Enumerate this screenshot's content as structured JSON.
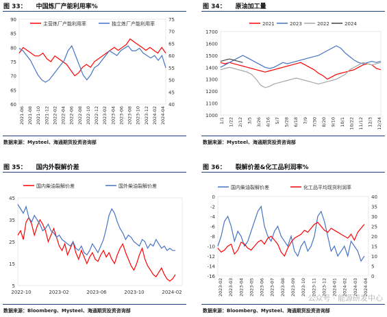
{
  "figures": [
    {
      "number": "图 33：",
      "title": "中国炼厂产能利用率%",
      "source": "数据来源：Mysteel、海通期货投资咨询部"
    },
    {
      "number": "图 34：",
      "title": "原油加工量",
      "source": "数据来源：Mysteel、海通期货投资咨询部"
    },
    {
      "number": "图 35：",
      "title": "国内外裂解价差",
      "source": "数据来源：Bloomberg、Mysteel、海通期货投资咨询部"
    },
    {
      "number": "图 36：",
      "title": "裂解价差&化工品利润率%",
      "source": "数据来源：Bloomberg、Mysteel、海通期货投资咨询部"
    }
  ],
  "watermark": "公众号 · 能源研发中心",
  "colors": {
    "red": "#ff0000",
    "blue": "#4472c4",
    "gray": "#a6a6a6",
    "navy": "#1f3f7a",
    "black": "#404040"
  },
  "chart_data": [
    {
      "type": "line",
      "title": "中国炼厂产能利用率%",
      "x_ticks": [
        "2021-06",
        "2021-08",
        "2021-10",
        "2021-12",
        "2022-02",
        "2022-04",
        "2022-06",
        "2022-08",
        "2022-10",
        "2022-12",
        "2023-02",
        "2023-04",
        "2023-06",
        "2023-08",
        "2023-10",
        "2023-12",
        "2024-02",
        "2024-04"
      ],
      "y_left": {
        "range": [
          60,
          90
        ],
        "ticks": [
          60,
          65,
          70,
          75,
          80,
          85,
          90
        ]
      },
      "y_right": {
        "range": [
          40,
          75
        ],
        "ticks": [
          40,
          45,
          50,
          55,
          60,
          65,
          70,
          75
        ]
      },
      "series": [
        {
          "name": "主营炼厂产能利用率",
          "axis": "left",
          "color": "#ff0000",
          "values": [
            78,
            80,
            79,
            78,
            77,
            77,
            78,
            76,
            75,
            77,
            76,
            75,
            74,
            72,
            70,
            71,
            73,
            74,
            73,
            75,
            76,
            77,
            78,
            79,
            80,
            79,
            80,
            81,
            83,
            82,
            81,
            80,
            79,
            80,
            79,
            78,
            80,
            78
          ]
        },
        {
          "name": "独立炼厂产能利用率",
          "axis": "right",
          "color": "#4472c4",
          "values": [
            63,
            62,
            60,
            58,
            55,
            52,
            50,
            49,
            50,
            52,
            54,
            56,
            58,
            62,
            64,
            60,
            56,
            52,
            50,
            52,
            55,
            56,
            58,
            60,
            62,
            61,
            60,
            62,
            63,
            64,
            62,
            62,
            63,
            61,
            60,
            59,
            60,
            58,
            60,
            55
          ]
        }
      ]
    },
    {
      "type": "line",
      "title": "原油加工量",
      "x_ticks": [
        "1/1",
        "1/22",
        "2/12",
        "3/5",
        "3/26",
        "4/16",
        "5/7",
        "5/28",
        "6/18",
        "7/9",
        "7/30",
        "8/20",
        "9/10",
        "10/1",
        "10/22",
        "11/12",
        "12/3",
        "12/24"
      ],
      "y": {
        "range": [
          1000,
          1700
        ],
        "ticks": [
          1000,
          1100,
          1200,
          1300,
          1400,
          1500,
          1600,
          1700
        ]
      },
      "legend": [
        "2021",
        "2023",
        "2022",
        "2024"
      ],
      "series": [
        {
          "name": "2021",
          "color": "#ff0000",
          "values": [
            1440,
            1430,
            1440,
            1430,
            1420,
            1410,
            1400,
            1390,
            1380,
            1370,
            1360,
            1370,
            1380,
            1390,
            1400,
            1410,
            1420,
            1430,
            1440,
            1420,
            1400,
            1380,
            1350,
            1330,
            1300,
            1320,
            1340,
            1350,
            1360,
            1370,
            1380,
            1400,
            1420,
            1430,
            1420,
            1390,
            1380
          ]
        },
        {
          "name": "2023",
          "color": "#4472c4",
          "values": [
            1400,
            1420,
            1440,
            1460,
            1480,
            1500,
            1480,
            1460,
            1440,
            1420,
            1400,
            1390,
            1400,
            1420,
            1440,
            1430,
            1440,
            1450,
            1460,
            1470,
            1480,
            1490,
            1500,
            1520,
            1540,
            1560,
            1580,
            1560,
            1520,
            1490,
            1460,
            1440,
            1430,
            1440,
            1450,
            1440,
            1450
          ]
        },
        {
          "name": "2022",
          "color": "#a6a6a6",
          "values": [
            1380,
            1390,
            1400,
            1390,
            1380,
            1370,
            1360,
            1340,
            1300,
            1250,
            1230,
            1240,
            1260,
            1270,
            1280,
            1290,
            1300,
            1310,
            1300,
            1290,
            1280,
            1270,
            1260,
            1270,
            1280,
            1290,
            1300,
            1320,
            1340,
            1380,
            1400,
            1420,
            1440,
            1430,
            1420,
            1430,
            1440
          ]
        },
        {
          "name": "2024",
          "color": "#404040",
          "values": [
            1450,
            1460,
            1470,
            1460,
            1450,
            1440
          ]
        }
      ]
    },
    {
      "type": "line",
      "title": "国内外裂解价差",
      "x_ticks": [
        "2022-10",
        "2023-02",
        "2023-06",
        "2023-10",
        "2024-02"
      ],
      "y": {
        "range": [
          5,
          45
        ],
        "ticks": [
          5,
          15,
          25,
          35,
          45
        ]
      },
      "series": [
        {
          "name": "国内柴油裂解价差",
          "color": "#ff0000",
          "values": [
            28,
            30,
            26,
            34,
            36,
            33,
            28,
            32,
            35,
            33,
            30,
            25,
            28,
            31,
            27,
            23,
            21,
            24,
            19,
            22,
            25,
            20,
            17,
            21,
            18,
            15,
            18,
            20,
            17,
            16,
            19,
            21,
            18,
            20,
            17,
            15,
            19,
            22,
            24,
            20,
            17,
            14,
            12,
            15,
            19,
            22,
            17,
            14,
            12,
            10,
            9,
            11,
            13,
            10,
            8,
            7,
            8,
            10
          ]
        },
        {
          "name": "国外柴油裂解价差",
          "color": "#4472c4",
          "values": [
            42,
            40,
            38,
            41,
            36,
            34,
            37,
            35,
            33,
            30,
            31,
            33,
            30,
            29,
            27,
            28,
            26,
            25,
            24,
            23,
            25,
            22,
            21,
            23,
            20,
            19,
            21,
            24,
            22,
            20,
            23,
            26,
            31,
            37,
            40,
            38,
            34,
            31,
            29,
            26,
            28,
            27,
            25,
            24,
            23,
            26,
            25,
            22,
            24,
            23,
            26,
            24,
            22,
            23,
            21,
            22,
            21,
            21
          ]
        }
      ]
    },
    {
      "type": "line",
      "title": "裂解价差&化工品利润率%",
      "x_ticks": [
        "2023-02",
        "2023-03",
        "2023-04",
        "2023-05",
        "2023-06",
        "2023-07",
        "2023-08",
        "2023-09",
        "2023-10",
        "2023-11",
        "2023-12",
        "2024-01",
        "2024-02",
        "2024-03",
        "2024-04"
      ],
      "y_left": {
        "range": [
          -16,
          0
        ],
        "ticks": [
          -16,
          -14,
          -12,
          -10,
          -8,
          -6,
          -4,
          -2,
          0
        ]
      },
      "y_right": {
        "range": [
          0,
          40
        ],
        "ticks": [
          0,
          5,
          10,
          15,
          20,
          25,
          30,
          35,
          40
        ]
      },
      "series": [
        {
          "name": "国内柴油裂解价差",
          "axis": "left",
          "color": "#4472c4",
          "values": [
            -10,
            -8,
            -5,
            -4,
            -6,
            -9,
            -7,
            -8,
            -10,
            -9,
            -7,
            -5,
            -3,
            -2,
            -6,
            -8,
            -9,
            -7,
            -6,
            -8,
            -9,
            -10,
            -8,
            -11,
            -12,
            -10,
            -9,
            -11,
            -10,
            -8,
            -4,
            -3,
            -5,
            -8,
            -11,
            -10,
            -12,
            -11,
            -10,
            -12,
            -9,
            -10,
            -11,
            -13,
            -12
          ]
        },
        {
          "name": "化工品平均现货利润率",
          "axis": "right",
          "color": "#ff0000",
          "values": [
            14,
            12,
            13,
            15,
            16,
            11,
            13,
            17,
            16,
            14,
            13,
            15,
            17,
            18,
            16,
            19,
            20,
            18,
            16,
            12,
            10,
            14,
            17,
            19,
            20,
            21,
            23,
            22,
            24,
            26,
            27,
            25,
            23,
            22,
            24,
            23,
            22,
            21,
            20,
            19,
            21,
            18,
            22,
            24,
            26
          ]
        }
      ]
    }
  ]
}
